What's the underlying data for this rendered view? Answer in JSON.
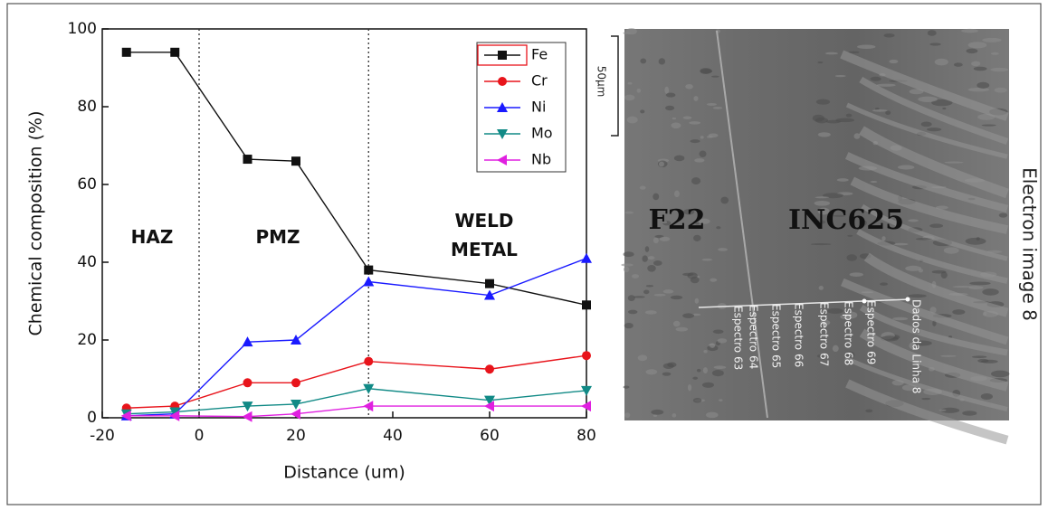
{
  "chart_data": {
    "type": "line",
    "x_label": "Distance (um)",
    "y_label": "Chemical composition (%)",
    "x": [
      -15,
      -5,
      10,
      20,
      35,
      60,
      80
    ],
    "series": [
      {
        "name": "Fe",
        "color": "#111111",
        "marker": "square",
        "values": [
          94,
          94,
          66.5,
          66,
          38,
          34.5,
          29
        ]
      },
      {
        "name": "Cr",
        "color": "#e8141b",
        "marker": "circle",
        "values": [
          2.5,
          3,
          9,
          9,
          14.5,
          12.5,
          16
        ]
      },
      {
        "name": "Ni",
        "color": "#1a1aff",
        "marker": "triangle-up",
        "values": [
          0.5,
          1,
          19.5,
          20,
          35,
          31.5,
          41
        ]
      },
      {
        "name": "Mo",
        "color": "#118a86",
        "marker": "triangle-down",
        "values": [
          1,
          1.5,
          3,
          3.5,
          7.5,
          4.5,
          7
        ]
      },
      {
        "name": "Nb",
        "color": "#e020e0",
        "marker": "triangle-left",
        "values": [
          0.5,
          0.5,
          0.3,
          1,
          3,
          3,
          3
        ]
      }
    ],
    "xlim": [
      -20,
      80
    ],
    "xticks": [
      -20,
      0,
      20,
      40,
      60,
      80
    ],
    "ylim": [
      0,
      100
    ],
    "yticks": [
      0,
      20,
      40,
      60,
      80,
      100
    ],
    "vlines": [
      0,
      35
    ],
    "annotations": [
      "HAZ",
      "PMZ",
      "WELD METAL"
    ],
    "legend": "top-right"
  },
  "image": {
    "labels": [
      "F22",
      "INC625"
    ],
    "scale_bar": "50µm",
    "caption": "Electron image 8",
    "spectra": [
      "Espectro 63",
      "Espectro 64",
      "Espectro 65",
      "Espectro 66",
      "Espectro 67",
      "Espectro 68",
      "Espectro 69",
      "Dados da Linha 8"
    ]
  }
}
